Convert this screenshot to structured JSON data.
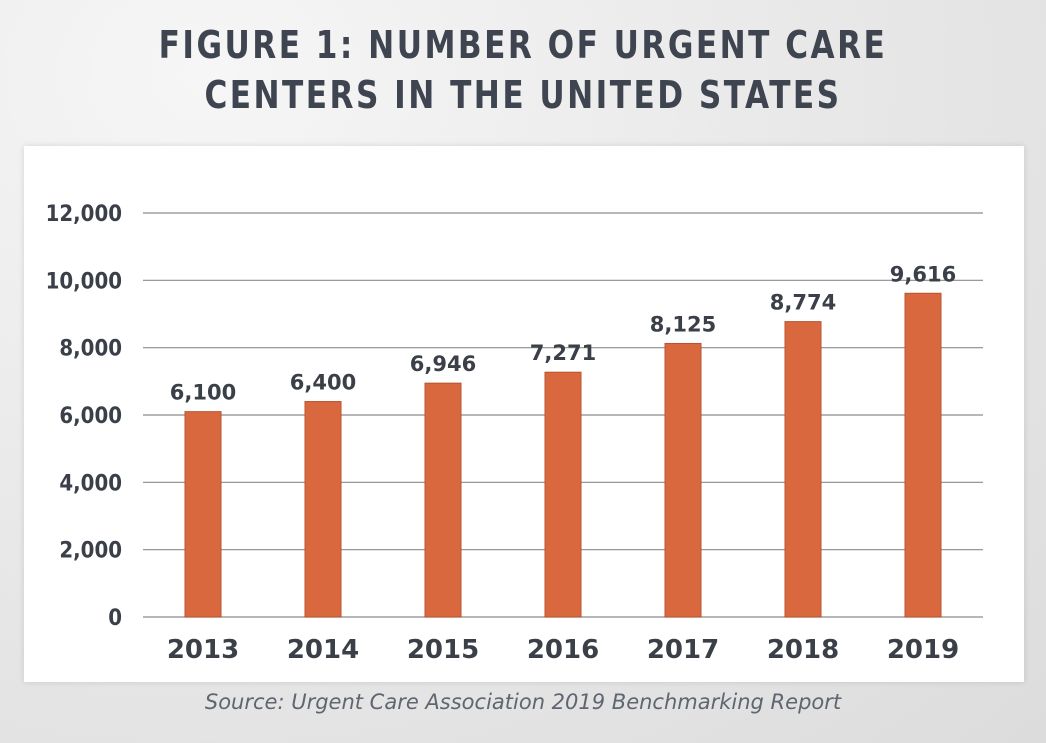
{
  "header": {
    "title_line1": "FIGURE 1: NUMBER OF URGENT CARE",
    "title_line2": "CENTERS IN THE UNITED STATES"
  },
  "footer": {
    "source": "Source: Urgent Care Association 2019 Benchmarking Report"
  },
  "colors": {
    "bar": "#d9683f",
    "bar_edge": "#b9532f",
    "grid": "#8c8c8c",
    "text": "#3a3f48"
  },
  "chart_data": {
    "type": "bar",
    "title": "FIGURE 1: NUMBER OF URGENT CARE CENTERS IN THE UNITED STATES",
    "categories": [
      "2013",
      "2014",
      "2015",
      "2016",
      "2017",
      "2018",
      "2019"
    ],
    "values": [
      6100,
      6400,
      6946,
      7271,
      8125,
      8774,
      9616
    ],
    "data_labels": [
      "6,100",
      "6,400",
      "6,946",
      "7,271",
      "8,125",
      "8,774",
      "9,616"
    ],
    "xlabel": "",
    "ylabel": "",
    "ylim": [
      0,
      12000
    ],
    "yticks": [
      0,
      2000,
      4000,
      6000,
      8000,
      10000,
      12000
    ],
    "ytick_labels": [
      "0",
      "2,000",
      "4,000",
      "6,000",
      "8,000",
      "10,000",
      "12,000"
    ],
    "grid": true,
    "legend": "none"
  }
}
